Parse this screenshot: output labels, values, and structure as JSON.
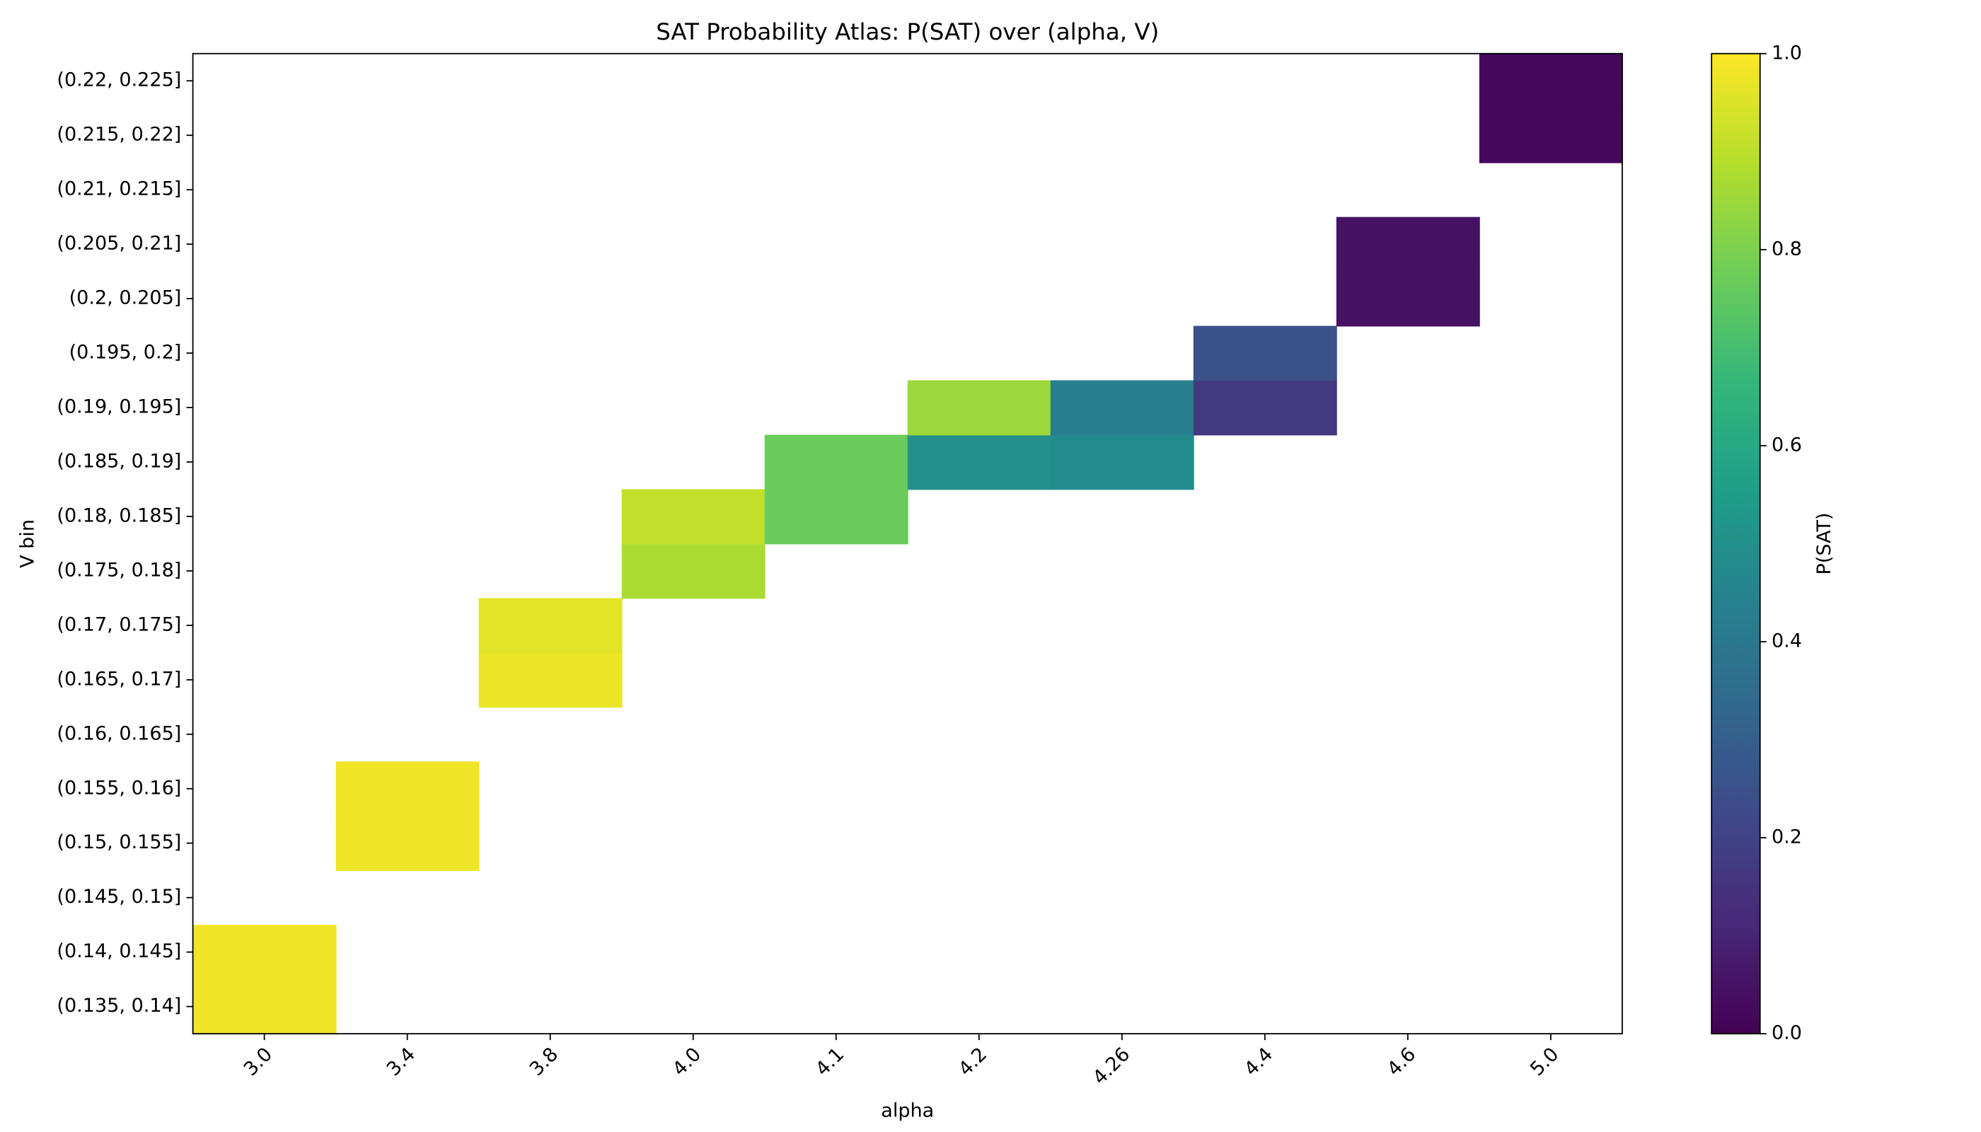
{
  "chart_data": {
    "type": "heatmap",
    "title": "SAT Probability Atlas: P(SAT) over (alpha, V)",
    "x_label": "alpha",
    "y_label": "V bin",
    "colorbar_label": "P(SAT)",
    "colormap": "viridis",
    "categories": [
      "3.0",
      "3.4",
      "3.8",
      "4.0",
      "4.1",
      "4.2",
      "4.26",
      "4.4",
      "4.6",
      "5.0"
    ],
    "y_categories": [
      "(0.135, 0.14]",
      "(0.14, 0.145]",
      "(0.145, 0.15]",
      "(0.15, 0.155]",
      "(0.155, 0.16]",
      "(0.16, 0.165]",
      "(0.165, 0.17]",
      "(0.17, 0.175]",
      "(0.175, 0.18]",
      "(0.18, 0.185]",
      "(0.185, 0.19]",
      "(0.19, 0.195]",
      "(0.195, 0.2]",
      "(0.2, 0.205]",
      "(0.205, 0.21]",
      "(0.21, 0.215]",
      "(0.215, 0.22]",
      "(0.22, 0.225]"
    ],
    "values": [
      [
        0.98,
        null,
        null,
        null,
        null,
        null,
        null,
        null,
        null,
        null
      ],
      [
        0.98,
        null,
        null,
        null,
        null,
        null,
        null,
        null,
        null,
        null
      ],
      [
        null,
        null,
        null,
        null,
        null,
        null,
        null,
        null,
        null,
        null
      ],
      [
        null,
        0.98,
        null,
        null,
        null,
        null,
        null,
        null,
        null,
        null
      ],
      [
        null,
        0.98,
        null,
        null,
        null,
        null,
        null,
        null,
        null,
        null
      ],
      [
        null,
        null,
        null,
        null,
        null,
        null,
        null,
        null,
        null,
        null
      ],
      [
        null,
        null,
        0.97,
        null,
        null,
        null,
        null,
        null,
        null,
        null
      ],
      [
        null,
        null,
        0.96,
        null,
        null,
        null,
        null,
        null,
        null,
        null
      ],
      [
        null,
        null,
        null,
        0.87,
        null,
        null,
        null,
        null,
        null,
        null
      ],
      [
        null,
        null,
        null,
        0.91,
        0.77,
        null,
        null,
        null,
        null,
        null
      ],
      [
        null,
        null,
        null,
        null,
        0.77,
        0.5,
        0.48,
        null,
        null,
        null
      ],
      [
        null,
        null,
        null,
        null,
        null,
        0.85,
        0.43,
        0.17,
        null,
        null
      ],
      [
        null,
        null,
        null,
        null,
        null,
        null,
        null,
        0.25,
        null,
        null
      ],
      [
        null,
        null,
        null,
        null,
        null,
        null,
        null,
        null,
        0.05,
        null
      ],
      [
        null,
        null,
        null,
        null,
        null,
        null,
        null,
        null,
        0.05,
        null
      ],
      [
        null,
        null,
        null,
        null,
        null,
        null,
        null,
        null,
        null,
        null
      ],
      [
        null,
        null,
        null,
        null,
        null,
        null,
        null,
        null,
        null,
        0.02
      ],
      [
        null,
        null,
        null,
        null,
        null,
        null,
        null,
        null,
        null,
        0.02
      ]
    ],
    "clim": [
      0,
      1
    ],
    "cticks": [
      {
        "value": 0,
        "label": "0.0"
      },
      {
        "value": 0.2,
        "label": "0.2"
      },
      {
        "value": 0.4,
        "label": "0.4"
      },
      {
        "value": 0.6,
        "label": "0.6"
      },
      {
        "value": 0.8,
        "label": "0.8"
      },
      {
        "value": 1,
        "label": "1.0"
      }
    ]
  }
}
